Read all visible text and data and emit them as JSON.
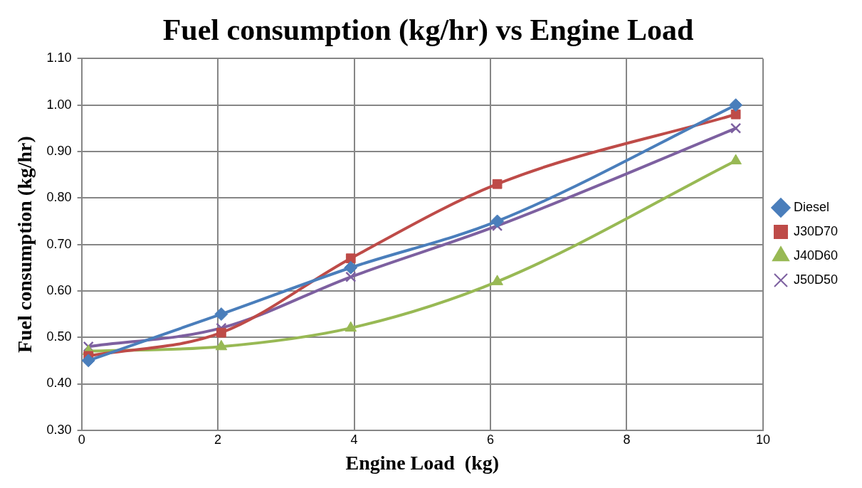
{
  "chart_data": {
    "type": "line",
    "title": "Fuel consumption (kg/hr) vs Engine Load",
    "xlabel": "Engine Load  (kg)",
    "ylabel": "Fuel consumption (kg/hr)",
    "x": [
      0.1,
      2.05,
      3.95,
      6.1,
      9.6
    ],
    "series": [
      {
        "name": "Diesel",
        "color": "#4a7ebb",
        "marker": "diamond",
        "values": [
          0.45,
          0.55,
          0.65,
          0.75,
          1.0
        ]
      },
      {
        "name": "J30D70",
        "color": "#be4b48",
        "marker": "square",
        "values": [
          0.46,
          0.51,
          0.67,
          0.83,
          0.98
        ]
      },
      {
        "name": "J40D60",
        "color": "#98b954",
        "marker": "triangle",
        "values": [
          0.47,
          0.48,
          0.52,
          0.62,
          0.88
        ]
      },
      {
        "name": "J50D50",
        "color": "#7d60a0",
        "marker": "cross",
        "values": [
          0.48,
          0.52,
          0.63,
          0.74,
          0.95
        ]
      }
    ],
    "xlim": [
      0,
      10
    ],
    "xticks": [
      0,
      2,
      4,
      6,
      8,
      10
    ],
    "ylim": [
      0.3,
      1.1
    ],
    "yticks": [
      {
        "value": 0.3,
        "label": "0.30"
      },
      {
        "value": 0.4,
        "label": "0.40"
      },
      {
        "value": 0.5,
        "label": "0.50"
      },
      {
        "value": 0.6,
        "label": "0.60"
      },
      {
        "value": 0.7,
        "label": "0.70"
      },
      {
        "value": 0.8,
        "label": "0.80"
      },
      {
        "value": 0.9,
        "label": "0.90"
      },
      {
        "value": 1.0,
        "label": "1.00"
      },
      {
        "value": 1.1,
        "label": "1.10"
      }
    ],
    "grid": true,
    "legend": "right",
    "line_style": "solid"
  }
}
